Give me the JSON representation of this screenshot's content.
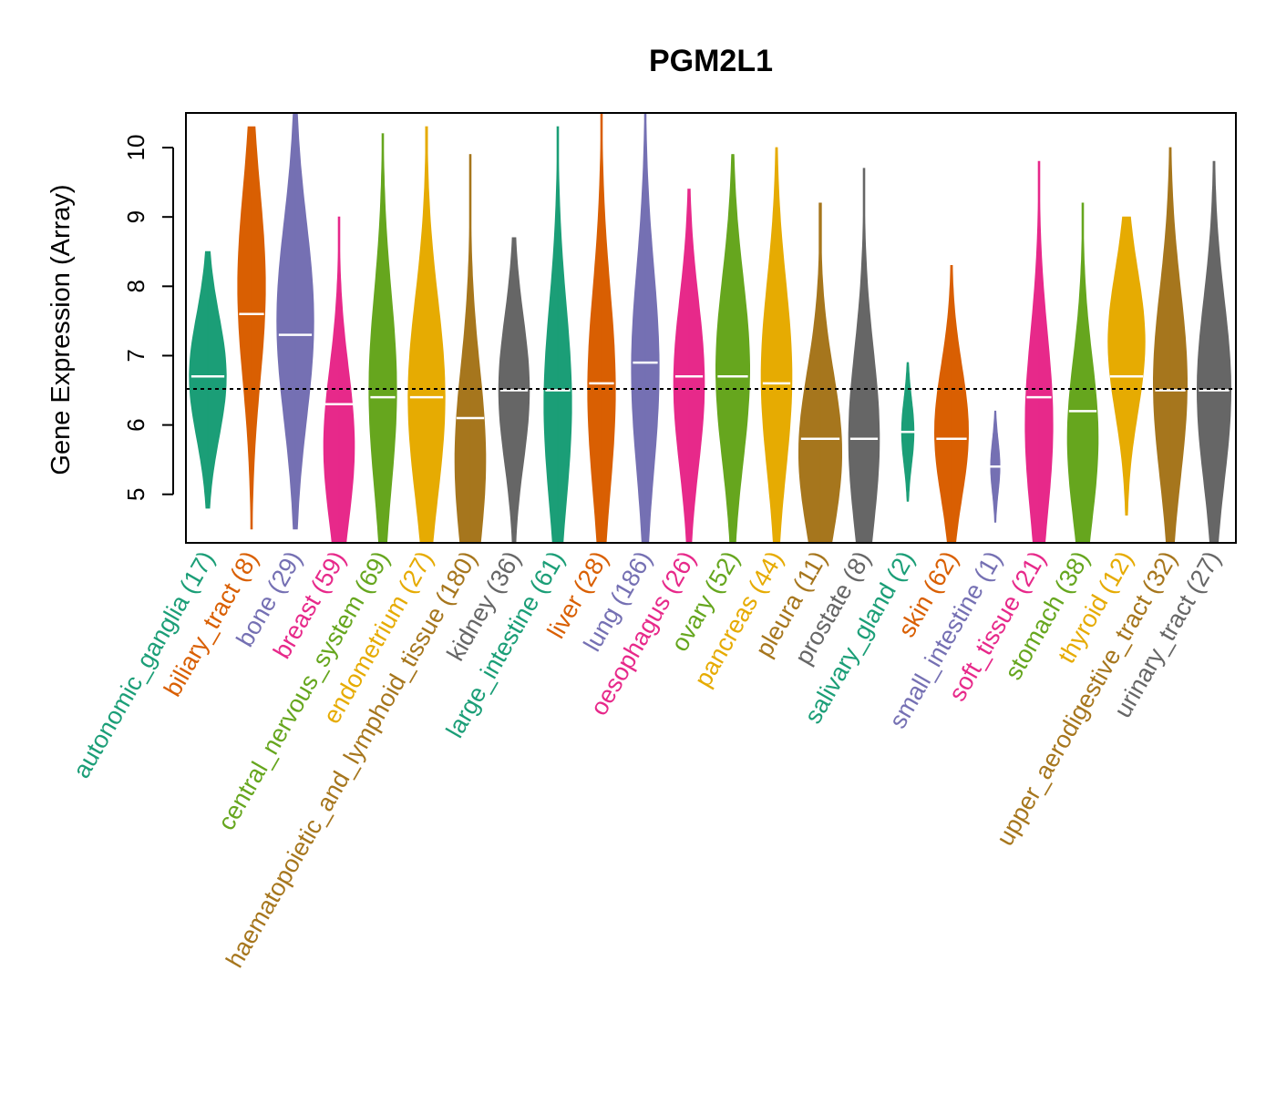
{
  "chart_data": {
    "type": "violin",
    "title": "PGM2L1",
    "ylabel": "Gene Expression (Array)",
    "xlabel": "",
    "ylim": [
      4.3,
      10.5
    ],
    "yticks": [
      5,
      6,
      7,
      8,
      9,
      10
    ],
    "reference_line": 6.52,
    "categories": [
      {
        "label": "autonomic_ganglia (17)",
        "color": "#1B9E77",
        "min": 4.8,
        "max": 8.5,
        "median": 6.7,
        "mode": 6.7,
        "peak": 0.6
      },
      {
        "label": "biliary_tract (8)",
        "color": "#D95F02",
        "min": 4.5,
        "max": 10.3,
        "median": 7.6,
        "mode": 8.0,
        "peak": 0.45
      },
      {
        "label": "bone (29)",
        "color": "#7570B3",
        "min": 4.5,
        "max": 10.5,
        "median": 7.3,
        "mode": 7.5,
        "peak": 0.6
      },
      {
        "label": "breast (59)",
        "color": "#E7298A",
        "min": 4.3,
        "max": 9.0,
        "median": 6.3,
        "mode": 5.7,
        "peak": 0.5
      },
      {
        "label": "central_nervous_system (69)",
        "color": "#66A61E",
        "min": 4.3,
        "max": 10.2,
        "median": 6.4,
        "mode": 6.5,
        "peak": 0.45
      },
      {
        "label": "endometrium (27)",
        "color": "#E6AB02",
        "min": 4.3,
        "max": 10.3,
        "median": 6.4,
        "mode": 6.4,
        "peak": 0.6
      },
      {
        "label": "haematopoietic_and_lymphoid_tissue (180)",
        "color": "#A6761D",
        "min": 4.3,
        "max": 9.9,
        "median": 6.1,
        "mode": 5.5,
        "peak": 0.5
      },
      {
        "label": "kidney (36)",
        "color": "#666666",
        "min": 4.3,
        "max": 8.7,
        "median": 6.5,
        "mode": 6.5,
        "peak": 0.5
      },
      {
        "label": "large_intestine (61)",
        "color": "#1B9E77",
        "min": 4.3,
        "max": 10.3,
        "median": 6.5,
        "mode": 6.3,
        "peak": 0.45
      },
      {
        "label": "liver (28)",
        "color": "#D95F02",
        "min": 4.3,
        "max": 10.5,
        "median": 6.6,
        "mode": 6.5,
        "peak": 0.45
      },
      {
        "label": "lung (186)",
        "color": "#7570B3",
        "min": 4.3,
        "max": 10.5,
        "median": 6.9,
        "mode": 6.8,
        "peak": 0.45
      },
      {
        "label": "oesophagus (26)",
        "color": "#E7298A",
        "min": 4.3,
        "max": 9.4,
        "median": 6.7,
        "mode": 6.6,
        "peak": 0.5
      },
      {
        "label": "ovary (52)",
        "color": "#66A61E",
        "min": 4.3,
        "max": 9.9,
        "median": 6.7,
        "mode": 6.8,
        "peak": 0.55
      },
      {
        "label": "pancreas (44)",
        "color": "#E6AB02",
        "min": 4.3,
        "max": 10.0,
        "median": 6.6,
        "mode": 6.7,
        "peak": 0.5
      },
      {
        "label": "pleura (11)",
        "color": "#A6761D",
        "min": 4.3,
        "max": 9.2,
        "median": 5.8,
        "mode": 5.6,
        "peak": 0.7
      },
      {
        "label": "prostate (8)",
        "color": "#666666",
        "min": 4.3,
        "max": 9.7,
        "median": 5.8,
        "mode": 5.8,
        "peak": 0.5
      },
      {
        "label": "salivary_gland (2)",
        "color": "#1B9E77",
        "min": 4.9,
        "max": 6.9,
        "median": 5.9,
        "mode": 5.9,
        "peak": 0.2
      },
      {
        "label": "skin (62)",
        "color": "#D95F02",
        "min": 4.3,
        "max": 8.3,
        "median": 5.8,
        "mode": 5.9,
        "peak": 0.55
      },
      {
        "label": "small_intestine (1)",
        "color": "#7570B3",
        "min": 4.6,
        "max": 6.2,
        "median": 5.4,
        "mode": 5.4,
        "peak": 0.15
      },
      {
        "label": "soft_tissue (21)",
        "color": "#E7298A",
        "min": 4.3,
        "max": 9.8,
        "median": 6.4,
        "mode": 6.0,
        "peak": 0.45
      },
      {
        "label": "stomach (38)",
        "color": "#66A61E",
        "min": 4.3,
        "max": 9.2,
        "median": 6.2,
        "mode": 5.8,
        "peak": 0.5
      },
      {
        "label": "thyroid (12)",
        "color": "#E6AB02",
        "min": 4.7,
        "max": 9.0,
        "median": 6.7,
        "mode": 7.2,
        "peak": 0.6
      },
      {
        "label": "upper_aerodigestive_tract (32)",
        "color": "#A6761D",
        "min": 4.3,
        "max": 10.0,
        "median": 6.5,
        "mode": 6.6,
        "peak": 0.55
      },
      {
        "label": "urinary_tract (27)",
        "color": "#666666",
        "min": 4.3,
        "max": 9.8,
        "median": 6.5,
        "mode": 6.5,
        "peak": 0.55
      }
    ]
  }
}
